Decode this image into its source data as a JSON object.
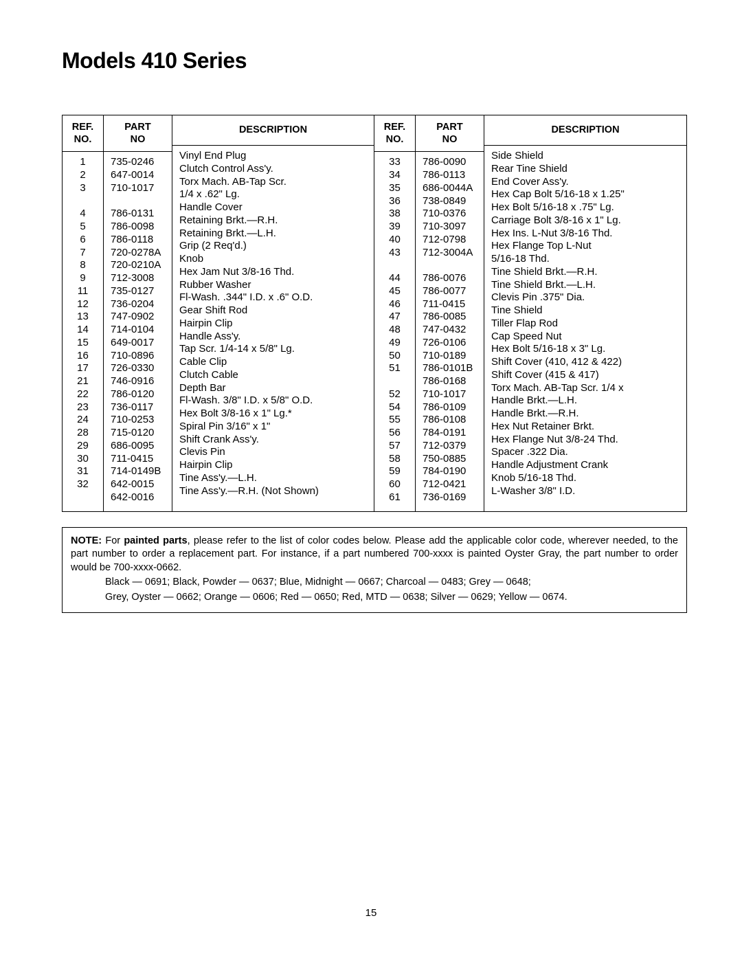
{
  "title": "Models 410 Series",
  "headers": {
    "ref1": "REF.",
    "ref2": "NO.",
    "part1": "PART",
    "part2": "NO",
    "desc": "DESCRIPTION"
  },
  "left": {
    "ref": [
      "1",
      "2",
      "3",
      "",
      "4",
      "5",
      "6",
      "7",
      "8",
      "9",
      "11",
      "12",
      "13",
      "14",
      "15",
      "16",
      "17",
      "21",
      "22",
      "23",
      "24",
      "28",
      "29",
      "30",
      "31",
      "32",
      ""
    ],
    "part": [
      "735-0246",
      "647-0014",
      "710-1017",
      "",
      "786-0131",
      "786-0098",
      "786-0118",
      "720-0278A",
      "720-0210A",
      "712-3008",
      "735-0127",
      "736-0204",
      "747-0902",
      "714-0104",
      "649-0017",
      "710-0896",
      "726-0330",
      "746-0916",
      "786-0120",
      "736-0117",
      "710-0253",
      "715-0120",
      "686-0095",
      "711-0415",
      "714-0149B",
      "642-0015",
      "642-0016"
    ],
    "desc": [
      "Vinyl End Plug",
      "Clutch Control Ass'y.",
      "Torx Mach. AB-Tap Scr.",
      "1/4 x   .62\" Lg.",
      "Handle Cover",
      "Retaining Brkt.—R.H.",
      "Retaining Brkt.—L.H.",
      "Grip (2 Req'd.)",
      "Knob",
      "Hex Jam Nut 3/8-16 Thd.",
      "Rubber Washer",
      "Fl-Wash. .344\" I.D. x .6\" O.D.",
      "Gear Shift Rod",
      "Hairpin Clip",
      "Handle Ass'y.",
      "Tap Scr. 1/4-14 x 5/8\" Lg.",
      "Cable Clip",
      "Clutch Cable",
      "Depth Bar",
      "Fl-Wash. 3/8\" I.D. x 5/8\" O.D.",
      "Hex Bolt 3/8-16 x 1\" Lg.*",
      "Spiral Pin 3/16\" x 1\"",
      "Shift Crank Ass'y.",
      "Clevis Pin",
      "Hairpin Clip",
      "Tine Ass'y.—L.H.",
      "Tine Ass'y.—R.H. (Not Shown)"
    ]
  },
  "right": {
    "ref": [
      "33",
      "34",
      "35",
      "36",
      "38",
      "39",
      "40",
      "43",
      "",
      "44",
      "45",
      "46",
      "47",
      "48",
      "49",
      "50",
      "51",
      "",
      "52",
      "54",
      "55",
      "56",
      "57",
      "58",
      "59",
      "60",
      "61"
    ],
    "part": [
      "786-0090",
      "786-0113",
      "686-0044A",
      "738-0849",
      "710-0376",
      "710-3097",
      "712-0798",
      "712-3004A",
      "",
      "786-0076",
      "786-0077",
      "711-0415",
      "786-0085",
      "747-0432",
      "726-0106",
      "710-0189",
      "786-0101B",
      "786-0168",
      "710-1017",
      "786-0109",
      "786-0108",
      "784-0191",
      "712-0379",
      "750-0885",
      "784-0190",
      "712-0421",
      "736-0169"
    ],
    "desc": [
      "Side Shield",
      "Rear Tine Shield",
      "End Cover Ass'y.",
      "Hex Cap Bolt 5/16-18 x 1.25\"",
      "Hex Bolt 5/16-18 x .75\" Lg.",
      "Carriage Bolt 3/8-16 x 1\" Lg.",
      "Hex Ins. L-Nut 3/8-16 Thd.",
      "Hex Flange Top L-Nut",
      "5/16-18  Thd.",
      "Tine Shield Brkt.—R.H.",
      "Tine Shield Brkt.—L.H.",
      "Clevis Pin .375\" Dia.",
      "Tine Shield",
      "Tiller Flap Rod",
      "Cap Speed Nut",
      "Hex Bolt 5/16-18 x 3\" Lg.",
      "Shift Cover (410, 412 & 422)",
      "Shift Cover (415 & 417)",
      "Torx Mach. AB-Tap Scr. 1/4 x",
      "Handle Brkt.—L.H.",
      "Handle Brkt.—R.H.",
      "Hex Nut Retainer Brkt.",
      "Hex Flange Nut 3/8-24 Thd.",
      "Spacer .322 Dia.",
      "Handle Adjustment Crank",
      "Knob 5/16-18 Thd.",
      "L-Washer 3/8\" I.D."
    ]
  },
  "note": {
    "label": "NOTE:",
    "bold1": "painted parts",
    "text1a": " For ",
    "text1b": ", please refer to the list of color codes below.  Please add the applicable color code, wherever needed, to the part number to order a replacement part.  For instance, if a part numbered 700-xxxx is painted Oyster Gray, the part number to order would be 700-xxxx-0662.",
    "colors1": "Black — 0691; Black, Powder — 0637; Blue, Midnight — 0667; Charcoal — 0483; Grey — 0648;",
    "colors2": "Grey, Oyster — 0662; Orange — 0606; Red — 0650; Red, MTD — 0638; Silver — 0629; Yellow — 0674."
  },
  "page_number": "15"
}
